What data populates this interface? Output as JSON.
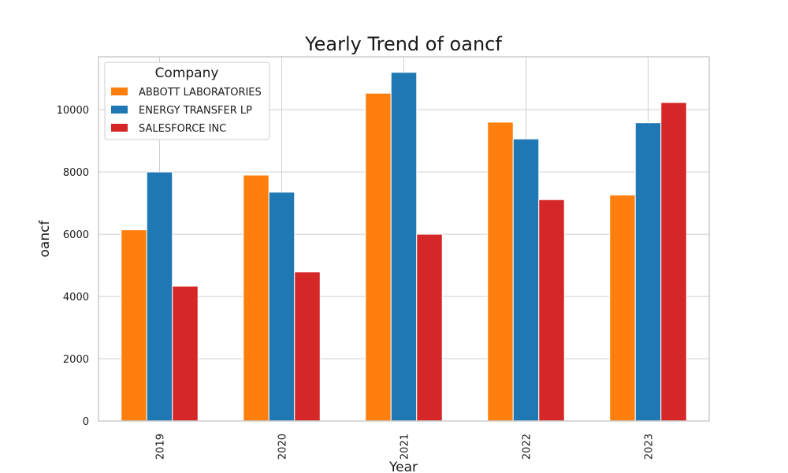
{
  "chart_data": {
    "type": "bar",
    "title": "Yearly Trend of oancf",
    "xlabel": "Year",
    "ylabel": "oancf",
    "categories": [
      "2019",
      "2020",
      "2021",
      "2022",
      "2023"
    ],
    "series": [
      {
        "name": "ABBOTT LABORATORIES",
        "color": "#ff7f0e",
        "values": [
          6140,
          7900,
          10530,
          9600,
          7260
        ]
      },
      {
        "name": "ENERGY TRANSFER LP",
        "color": "#1f77b4",
        "values": [
          8000,
          7350,
          11200,
          9060,
          9580
        ]
      },
      {
        "name": "SALESFORCE INC",
        "color": "#d62728",
        "values": [
          4330,
          4790,
          6000,
          7110,
          10230
        ]
      }
    ],
    "ylim": [
      0,
      11700
    ],
    "yticks": [
      0,
      2000,
      4000,
      6000,
      8000,
      10000
    ],
    "grid": true,
    "legend": {
      "title": "Company",
      "placement": "top-left"
    }
  }
}
